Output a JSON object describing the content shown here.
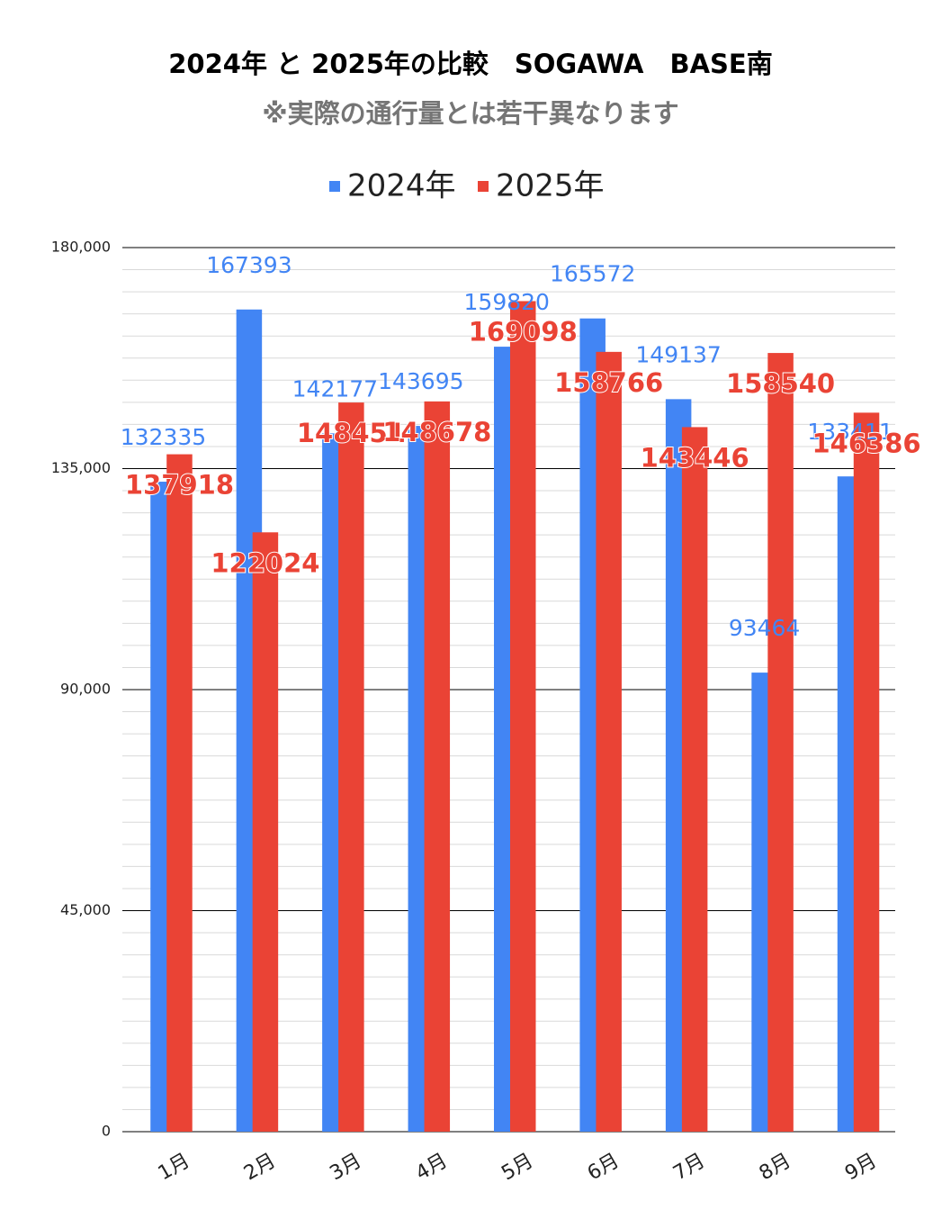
{
  "chart_data": {
    "type": "bar",
    "title": "2024年 と 2025年の比較　SOGAWA　BASE南",
    "subtitle": "※実際の通行量とは若干異なります",
    "categories": [
      "1月",
      "2月",
      "3月",
      "4月",
      "5月",
      "6月",
      "7月",
      "8月",
      "9月"
    ],
    "series": [
      {
        "name": "2024年",
        "color": "#4285f4",
        "values": [
          132335,
          167393,
          142177,
          143695,
          159820,
          165572,
          149137,
          93464,
          133411
        ]
      },
      {
        "name": "2025年",
        "color": "#ea4335",
        "values": [
          137918,
          122024,
          148451,
          148678,
          169098,
          158766,
          143446,
          158540,
          146386
        ]
      }
    ],
    "ylim": [
      0,
      180000
    ],
    "yticks": [
      {
        "value": 0,
        "label": "0"
      },
      {
        "value": 45000,
        "label": "45,000"
      },
      {
        "value": 90000,
        "label": "90,000"
      },
      {
        "value": 135000,
        "label": "135,000"
      },
      {
        "value": 180000,
        "label": "180,000"
      }
    ],
    "minor_yticks": [
      4500,
      9000,
      13500,
      18000,
      22500,
      27000,
      31500,
      36000,
      40500,
      49500,
      54000,
      58500,
      63000,
      67500,
      72000,
      76500,
      81000,
      85500,
      94500,
      99000,
      103500,
      108000,
      112500,
      117000,
      121500,
      126000,
      130500,
      139500,
      144000,
      148500,
      153000,
      157500,
      162000,
      166500,
      171000,
      175500
    ],
    "grid": true,
    "legend": "top"
  }
}
